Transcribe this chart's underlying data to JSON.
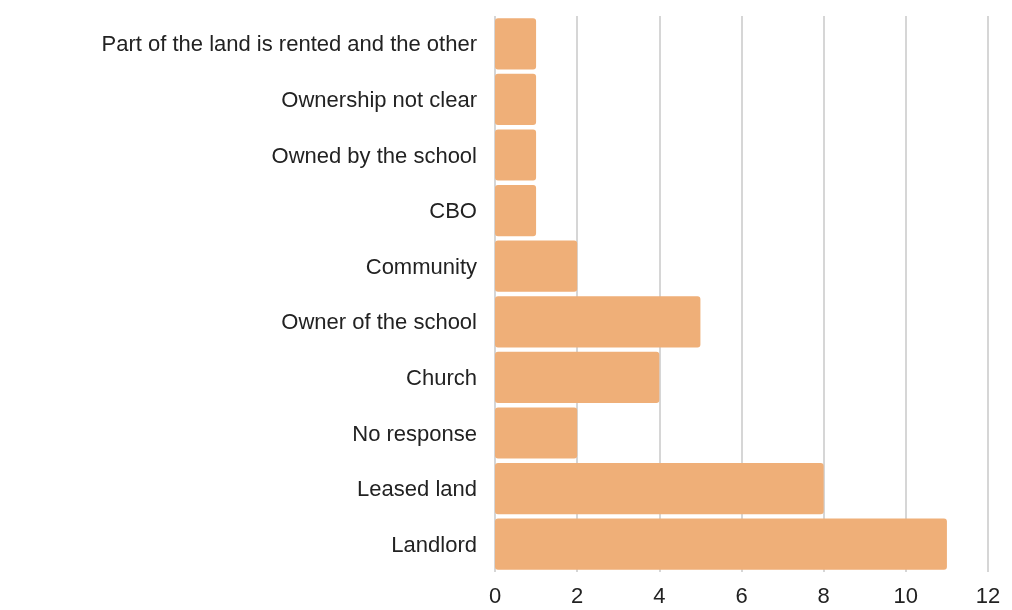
{
  "chart_data": {
    "type": "bar",
    "orientation": "horizontal",
    "categories": [
      "Part of the land is rented and the other",
      "Ownership not clear",
      "Owned by the school",
      "CBO",
      "Community",
      "Owner of the school",
      "Church",
      "No response",
      "Leased land",
      "Landlord"
    ],
    "values": [
      1,
      1,
      1,
      1,
      2,
      5,
      4,
      2,
      8,
      11
    ],
    "color": "#efaf78",
    "xlim": [
      0,
      12
    ],
    "xticks": [
      0,
      2,
      4,
      6,
      8,
      10,
      12
    ],
    "grid": "x"
  }
}
